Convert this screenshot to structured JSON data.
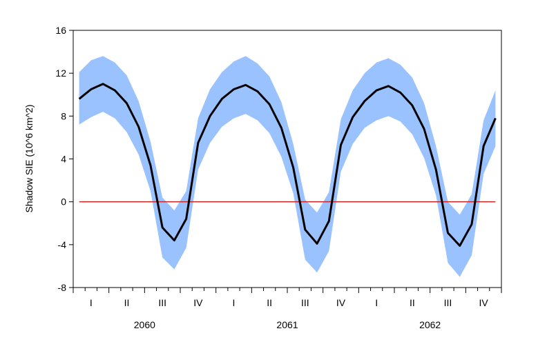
{
  "chart_data": {
    "type": "area",
    "xlabel": "",
    "ylabel": "Shadow SIE (10^6 km^2)",
    "ylim": [
      -8,
      16
    ],
    "yticks": [
      -8,
      -4,
      0,
      4,
      8,
      12,
      16
    ],
    "grid": false,
    "legend": "none",
    "quarter_labels": [
      "I",
      "II",
      "III",
      "IV",
      "I",
      "II",
      "III",
      "IV",
      "I",
      "II",
      "III",
      "IV"
    ],
    "year_labels": [
      "2060",
      "2061",
      "2062"
    ],
    "months": [
      "2060-01",
      "2060-02",
      "2060-03",
      "2060-04",
      "2060-05",
      "2060-06",
      "2060-07",
      "2060-08",
      "2060-09",
      "2060-10",
      "2060-11",
      "2060-12",
      "2061-01",
      "2061-02",
      "2061-03",
      "2061-04",
      "2061-05",
      "2061-06",
      "2061-07",
      "2061-08",
      "2061-09",
      "2061-10",
      "2061-11",
      "2061-12",
      "2062-01",
      "2062-02",
      "2062-03",
      "2062-04",
      "2062-05",
      "2062-06",
      "2062-07",
      "2062-08",
      "2062-09",
      "2062-10",
      "2062-11",
      "2062-12"
    ],
    "series": [
      {
        "role": "mean",
        "values": [
          9.6,
          10.5,
          11.0,
          10.4,
          9.2,
          7.0,
          3.4,
          -2.4,
          -3.6,
          -1.6,
          5.5,
          8.0,
          9.6,
          10.5,
          10.9,
          10.3,
          9.1,
          6.9,
          3.2,
          -2.6,
          -3.9,
          -1.8,
          5.3,
          7.9,
          9.4,
          10.4,
          10.8,
          10.2,
          9.0,
          6.8,
          3.0,
          -2.9,
          -4.1,
          -2.1,
          5.2,
          7.8
        ]
      },
      {
        "role": "upper_band",
        "values": [
          12.1,
          13.2,
          13.6,
          13.0,
          11.8,
          9.4,
          5.6,
          0.4,
          -0.8,
          1.0,
          7.8,
          10.5,
          12.1,
          13.1,
          13.6,
          12.9,
          11.7,
          9.3,
          5.4,
          0.2,
          -1.0,
          0.9,
          7.7,
          10.4,
          12.0,
          13.0,
          13.4,
          12.8,
          11.6,
          9.2,
          5.2,
          0.0,
          -1.2,
          0.7,
          7.6,
          10.4
        ]
      },
      {
        "role": "lower_band",
        "values": [
          7.2,
          7.9,
          8.4,
          7.8,
          6.5,
          4.4,
          1.0,
          -5.2,
          -6.3,
          -4.3,
          3.0,
          5.5,
          7.0,
          7.8,
          8.2,
          7.6,
          6.4,
          4.2,
          0.8,
          -5.4,
          -6.6,
          -4.6,
          2.8,
          5.4,
          6.9,
          7.6,
          8.0,
          7.5,
          6.3,
          4.1,
          0.6,
          -5.7,
          -7.0,
          -5.0,
          2.6,
          5.2
        ]
      }
    ],
    "reference_line": {
      "y": 0,
      "color": "#cc2222"
    },
    "colors": {
      "band": "#99c2ff",
      "mean": "#000000",
      "axis": "#000000"
    }
  }
}
